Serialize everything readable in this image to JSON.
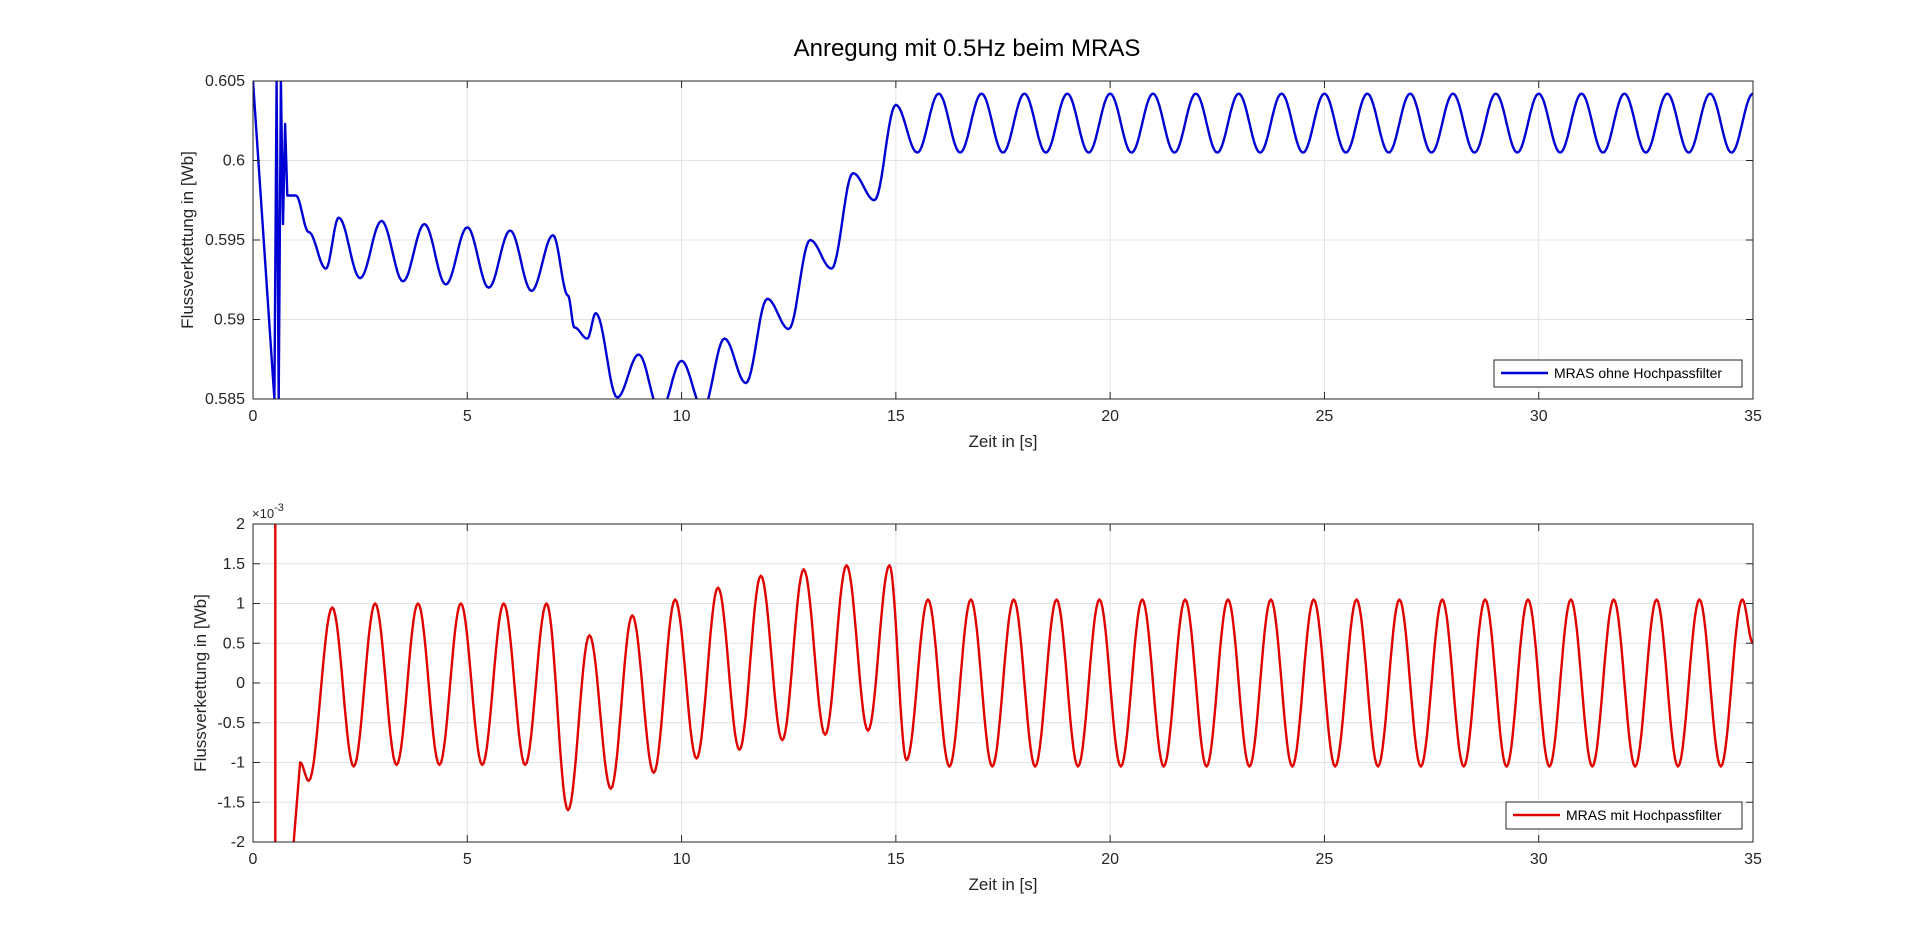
{
  "figure": {
    "title": "Anregung mit 0.5Hz beim MRAS"
  },
  "chart_data": [
    {
      "type": "line",
      "title": "Anregung mit 0.5Hz beim MRAS",
      "xlabel": "Zeit in [s]",
      "ylabel": "Flussverkettung in [Wb]",
      "xlim": [
        0,
        35
      ],
      "ylim": [
        0.585,
        0.605
      ],
      "xticks": [
        0,
        5,
        10,
        15,
        20,
        25,
        30,
        35
      ],
      "xtick_labels": [
        "0",
        "5",
        "10",
        "15",
        "20",
        "25",
        "30",
        "35"
      ],
      "yticks": [
        0.585,
        0.59,
        0.595,
        0.6,
        0.605
      ],
      "ytick_labels": [
        "0.585",
        "0.59",
        "0.595",
        "0.6",
        "0.605"
      ],
      "grid": true,
      "legend_position": "bottom-right",
      "series": [
        {
          "name": "MRAS ohne Hochpassfilter",
          "color": "#0000d4",
          "x": [
            0,
            0.5,
            0.55,
            0.6,
            0.65,
            0.7,
            0.75,
            0.8,
            1.0,
            1.3,
            1.7,
            2.0,
            2.5,
            3.0,
            3.5,
            4.0,
            4.5,
            5.0,
            5.5,
            6.0,
            6.5,
            7.0,
            7.35,
            7.5,
            7.8,
            8.0,
            8.5,
            9.0,
            9.5,
            10.0,
            10.5,
            11.0,
            11.5,
            12.0,
            12.5,
            13.0,
            13.5,
            14.0,
            14.5,
            15.0,
            15.5,
            16.0,
            35.0
          ],
          "y": [
            0.605,
            0.585,
            0.605,
            0.585,
            0.605,
            0.596,
            0.6023,
            0.5978,
            0.5978,
            0.5955,
            0.5932,
            0.5964,
            0.5926,
            0.5962,
            0.5924,
            0.596,
            0.5922,
            0.5958,
            0.592,
            0.5956,
            0.5918,
            0.5953,
            0.5915,
            0.5895,
            0.5888,
            0.5904,
            0.5851,
            0.5878,
            0.5842,
            0.5874,
            0.5844,
            0.5888,
            0.586,
            0.5913,
            0.5894,
            0.595,
            0.5932,
            0.5992,
            0.5975,
            0.6035,
            0.6005,
            0.6042,
            0.6042
          ],
          "oscillation": {
            "from": 15.5,
            "to": 35,
            "period": 1.0,
            "center": 0.60235,
            "amplitude": 0.00185
          }
        }
      ]
    },
    {
      "type": "line",
      "title": "",
      "xlabel": "Zeit in [s]",
      "ylabel": "Flussverkettung in [Wb]",
      "xlim": [
        0,
        35
      ],
      "ylim": [
        -0.002,
        0.002
      ],
      "y_scale_label": "×10",
      "y_scale_exponent": "-3",
      "xticks": [
        0,
        5,
        10,
        15,
        20,
        25,
        30,
        35
      ],
      "xtick_labels": [
        "0",
        "5",
        "10",
        "15",
        "20",
        "25",
        "30",
        "35"
      ],
      "yticks": [
        -0.002,
        -0.0015,
        -0.001,
        -0.0005,
        0,
        0.0005,
        0.001,
        0.0015,
        0.002
      ],
      "ytick_labels": [
        "-2",
        "-1.5",
        "-1",
        "-0.5",
        "0",
        "0.5",
        "1",
        "1.5",
        "2"
      ],
      "grid": true,
      "legend_position": "bottom-right",
      "series": [
        {
          "name": "MRAS mit Hochpassfilter",
          "color": "#e00000",
          "peaks_x": [
            1.85,
            2.85,
            3.85,
            4.85,
            5.85,
            6.85,
            7.85,
            8.85,
            9.85,
            10.85,
            11.85,
            12.85,
            13.85,
            14.85,
            15.75,
            16.75,
            17.75,
            18.75,
            19.75,
            20.75,
            21.75,
            22.75,
            23.75,
            24.75,
            25.75,
            26.75,
            27.75,
            28.75,
            29.75,
            30.75,
            31.75,
            32.75,
            33.75,
            34.75
          ],
          "peaks_y": [
            0.00095,
            0.001,
            0.001,
            0.001,
            0.001,
            0.001,
            0.0006,
            0.00085,
            0.00105,
            0.0012,
            0.00135,
            0.00143,
            0.00148,
            0.00148,
            0.00105,
            0.00105,
            0.00105,
            0.00105,
            0.00105,
            0.00105,
            0.00105,
            0.00105,
            0.00105,
            0.00105,
            0.00105,
            0.00105,
            0.00105,
            0.00105,
            0.00105,
            0.00105,
            0.00105,
            0.00105,
            0.00105,
            0.00105
          ],
          "troughs_x": [
            1.3,
            2.35,
            3.35,
            4.35,
            5.35,
            6.35,
            7.35,
            8.35,
            9.35,
            10.35,
            11.35,
            12.35,
            13.35,
            14.35,
            15.25,
            16.25,
            17.25,
            18.25,
            19.25,
            20.25,
            21.25,
            22.25,
            23.25,
            24.25,
            25.25,
            26.25,
            27.25,
            28.25,
            29.25,
            30.25,
            31.25,
            32.25,
            33.25,
            34.25
          ],
          "troughs_y": [
            -0.00123,
            -0.00105,
            -0.00103,
            -0.00103,
            -0.00103,
            -0.00103,
            -0.0016,
            -0.00133,
            -0.00113,
            -0.00095,
            -0.00084,
            -0.00072,
            -0.00065,
            -0.0006,
            -0.00097,
            -0.00105,
            -0.00105,
            -0.00105,
            -0.00105,
            -0.00105,
            -0.00105,
            -0.00105,
            -0.00105,
            -0.00105,
            -0.00105,
            -0.00105,
            -0.00105,
            -0.00105,
            -0.00105,
            -0.00105,
            -0.00105,
            -0.00105,
            -0.00105,
            -0.00105
          ],
          "start": {
            "spike_x": 0.52,
            "dip_x": 0.95,
            "first_min_x": 1.1,
            "first_min_y": -0.001,
            "end_x": 35,
            "end_y": 0.0005
          }
        }
      ]
    }
  ]
}
